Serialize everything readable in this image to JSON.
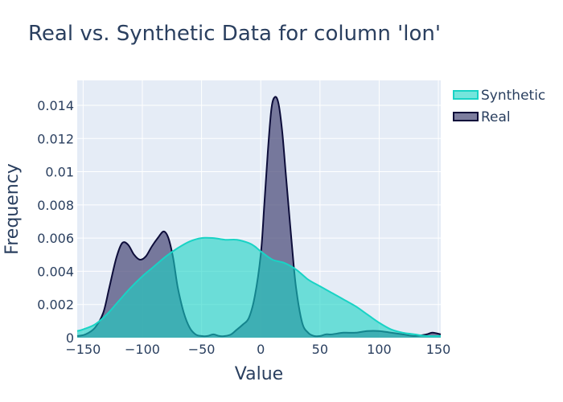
{
  "chart_data": {
    "type": "area",
    "title": "Real vs. Synthetic Data for column 'lon'",
    "xlabel": "Value",
    "ylabel": "Frequency",
    "xlim": [
      -155,
      152
    ],
    "ylim": [
      0,
      0.0155
    ],
    "x_ticks": [
      -150,
      -100,
      -50,
      0,
      50,
      100,
      150
    ],
    "x_tick_labels": [
      "−150",
      "−100",
      "−50",
      "0",
      "50",
      "100",
      "150"
    ],
    "y_ticks": [
      0,
      0.002,
      0.004,
      0.006,
      0.008,
      0.01,
      0.012,
      0.014
    ],
    "y_tick_labels": [
      "0",
      "0.002",
      "0.004",
      "0.006",
      "0.008",
      "0.01",
      "0.012",
      "0.014"
    ],
    "grid": true,
    "legend_position": "top-right",
    "series": [
      {
        "name": "Real",
        "line_color": "#0d0d3a",
        "fill_color": "rgba(80,82,125,0.75)",
        "x": [
          -155,
          -148,
          -140,
          -133,
          -128,
          -122,
          -117,
          -112,
          -107,
          -102,
          -97,
          -92,
          -87,
          -82,
          -78,
          -74,
          -70,
          -65,
          -60,
          -55,
          -50,
          -45,
          -40,
          -35,
          -30,
          -25,
          -20,
          -15,
          -10,
          -5,
          0,
          3,
          6,
          9,
          12,
          15,
          18,
          21,
          24,
          27,
          30,
          35,
          40,
          45,
          50,
          55,
          60,
          70,
          80,
          90,
          100,
          110,
          120,
          130,
          140,
          145,
          152
        ],
        "values": [
          0.0001,
          0.0002,
          0.0006,
          0.0015,
          0.003,
          0.0048,
          0.0057,
          0.0056,
          0.005,
          0.0047,
          0.0049,
          0.0055,
          0.006,
          0.0064,
          0.006,
          0.0048,
          0.003,
          0.0015,
          0.0006,
          0.0002,
          0.0001,
          0.0001,
          0.0002,
          0.0001,
          0.0001,
          0.0002,
          0.0005,
          0.0008,
          0.0012,
          0.0025,
          0.005,
          0.008,
          0.0112,
          0.0138,
          0.0145,
          0.0141,
          0.0125,
          0.01,
          0.0075,
          0.005,
          0.0029,
          0.0009,
          0.0003,
          0.0001,
          0.0001,
          0.0002,
          0.0002,
          0.0003,
          0.0003,
          0.0004,
          0.0004,
          0.0003,
          0.0002,
          0.0001,
          0.0002,
          0.0003,
          0.0002
        ]
      },
      {
        "name": "Synthetic",
        "line_color": "#19d3c5",
        "fill_color": "rgba(25,211,197,0.6)",
        "x": [
          -155,
          -150,
          -140,
          -130,
          -120,
          -110,
          -100,
          -90,
          -80,
          -70,
          -60,
          -50,
          -40,
          -30,
          -20,
          -10,
          -5,
          0,
          10,
          20,
          30,
          40,
          50,
          60,
          70,
          80,
          90,
          100,
          110,
          120,
          130,
          140,
          152
        ],
        "values": [
          0.0004,
          0.0005,
          0.0008,
          0.0014,
          0.0022,
          0.003,
          0.0037,
          0.0043,
          0.0049,
          0.0054,
          0.0058,
          0.006,
          0.006,
          0.0059,
          0.0059,
          0.0057,
          0.0055,
          0.0052,
          0.0047,
          0.0045,
          0.0041,
          0.0035,
          0.0031,
          0.0027,
          0.0023,
          0.0019,
          0.0014,
          0.0009,
          0.0005,
          0.0003,
          0.0002,
          0.0001,
          0.0001
        ]
      }
    ]
  }
}
